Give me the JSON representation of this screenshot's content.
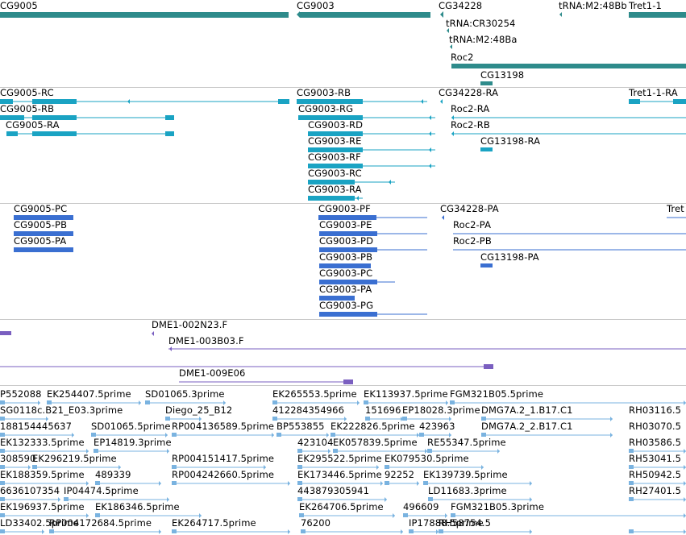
{
  "colors": {
    "gene": "#2e8b8b",
    "mrna": "#1aa3c3",
    "cds": "#3a6fd1",
    "clone": "#7a5fc0",
    "est": "#7ab3e0",
    "separator": "#c8c8c8"
  },
  "tracks": {
    "genes": [
      {
        "name": "CG9005"
      },
      {
        "name": "CG9003"
      },
      {
        "name": "CG34228"
      },
      {
        "name": "tRNA:CR30254"
      },
      {
        "name": "tRNA:M2:48Bb"
      },
      {
        "name": "tRNA:M2:48Ba"
      },
      {
        "name": "Tret1-1"
      },
      {
        "name": "Roc2"
      },
      {
        "name": "CG13198"
      }
    ],
    "mrna": [
      {
        "name": "CG9005-RC"
      },
      {
        "name": "CG9005-RB"
      },
      {
        "name": "CG9005-RA"
      },
      {
        "name": "CG9003-RB"
      },
      {
        "name": "CG9003-RG"
      },
      {
        "name": "CG9003-RD"
      },
      {
        "name": "CG9003-RE"
      },
      {
        "name": "CG9003-RF"
      },
      {
        "name": "CG9003-RC"
      },
      {
        "name": "CG9003-RA"
      },
      {
        "name": "CG34228-RA"
      },
      {
        "name": "Roc2-RA"
      },
      {
        "name": "Roc2-RB"
      },
      {
        "name": "CG13198-RA"
      },
      {
        "name": "Tret1-1-RA"
      }
    ],
    "cds": [
      {
        "name": "CG9005-PC"
      },
      {
        "name": "CG9005-PB"
      },
      {
        "name": "CG9005-PA"
      },
      {
        "name": "CG9003-PF"
      },
      {
        "name": "CG9003-PE"
      },
      {
        "name": "CG9003-PD"
      },
      {
        "name": "CG9003-PB"
      },
      {
        "name": "CG9003-PC"
      },
      {
        "name": "CG9003-PA"
      },
      {
        "name": "CG9003-PG"
      },
      {
        "name": "CG34228-PA"
      },
      {
        "name": "Roc2-PA"
      },
      {
        "name": "Roc2-PB"
      },
      {
        "name": "CG13198-PA"
      },
      {
        "name": "Tret"
      }
    ],
    "clones": [
      {
        "name": "DME1-002N23.F"
      },
      {
        "name": "DME1-003B03.F"
      },
      {
        "name": "DME1-009E06"
      }
    ],
    "ests": [
      {
        "name": "P552088"
      },
      {
        "name": "EK254407.5prime"
      },
      {
        "name": "SD01065.3prime"
      },
      {
        "name": "EK265553.5prime"
      },
      {
        "name": "EK113937.5prime"
      },
      {
        "name": "FGM321B05.5prime"
      },
      {
        "name": "SG0118c.B21_E03.3prime"
      },
      {
        "name": "Diego_25_B12"
      },
      {
        "name": "412284354966"
      },
      {
        "name": "151696"
      },
      {
        "name": "EP18028.3prime"
      },
      {
        "name": "DMG7A.2_1.B17.C1"
      },
      {
        "name": "188154445637"
      },
      {
        "name": "SD01065.5prime"
      },
      {
        "name": "RP004136589.5prime"
      },
      {
        "name": "BP553855"
      },
      {
        "name": "EK222826.5prime"
      },
      {
        "name": "423963"
      },
      {
        "name": "DMG7A.2_2.B17.C1"
      },
      {
        "name": "RH03116.5"
      },
      {
        "name": "RH03070.5"
      },
      {
        "name": "EK132333.5prime"
      },
      {
        "name": "EP14819.3prime"
      },
      {
        "name": "423104"
      },
      {
        "name": "EK057839.5prime"
      },
      {
        "name": "RE55347.5prime"
      },
      {
        "name": "RH03586.5"
      },
      {
        "name": "308590"
      },
      {
        "name": "EK296219.5prime"
      },
      {
        "name": "RP004151417.5prime"
      },
      {
        "name": "EK295522.5prime"
      },
      {
        "name": "EK079530.5prime"
      },
      {
        "name": "RH53041.5"
      },
      {
        "name": "EK188359.5prime"
      },
      {
        "name": "489339"
      },
      {
        "name": "RP004242660.5prime"
      },
      {
        "name": "EK173446.5prime"
      },
      {
        "name": "92252"
      },
      {
        "name": "EK139739.5prime"
      },
      {
        "name": "RH50942.5"
      },
      {
        "name": "6636107354"
      },
      {
        "name": "IP04474.5prime"
      },
      {
        "name": "443879305941"
      },
      {
        "name": "LD11683.3prime"
      },
      {
        "name": "RH27401.5"
      },
      {
        "name": "EK196937.5prime"
      },
      {
        "name": "EK186346.5prime"
      },
      {
        "name": "EK264706.5prime"
      },
      {
        "name": "496609"
      },
      {
        "name": "FGM321B05.3prime"
      },
      {
        "name": "RH27401.5p"
      },
      {
        "name": "316623"
      },
      {
        "name": "LD33402.5prime"
      },
      {
        "name": "RP004172684.5prime"
      },
      {
        "name": "EK264717.5prime"
      },
      {
        "name": "76200"
      },
      {
        "name": "IP17888.5prime"
      },
      {
        "name": "RH58754.5"
      }
    ]
  }
}
